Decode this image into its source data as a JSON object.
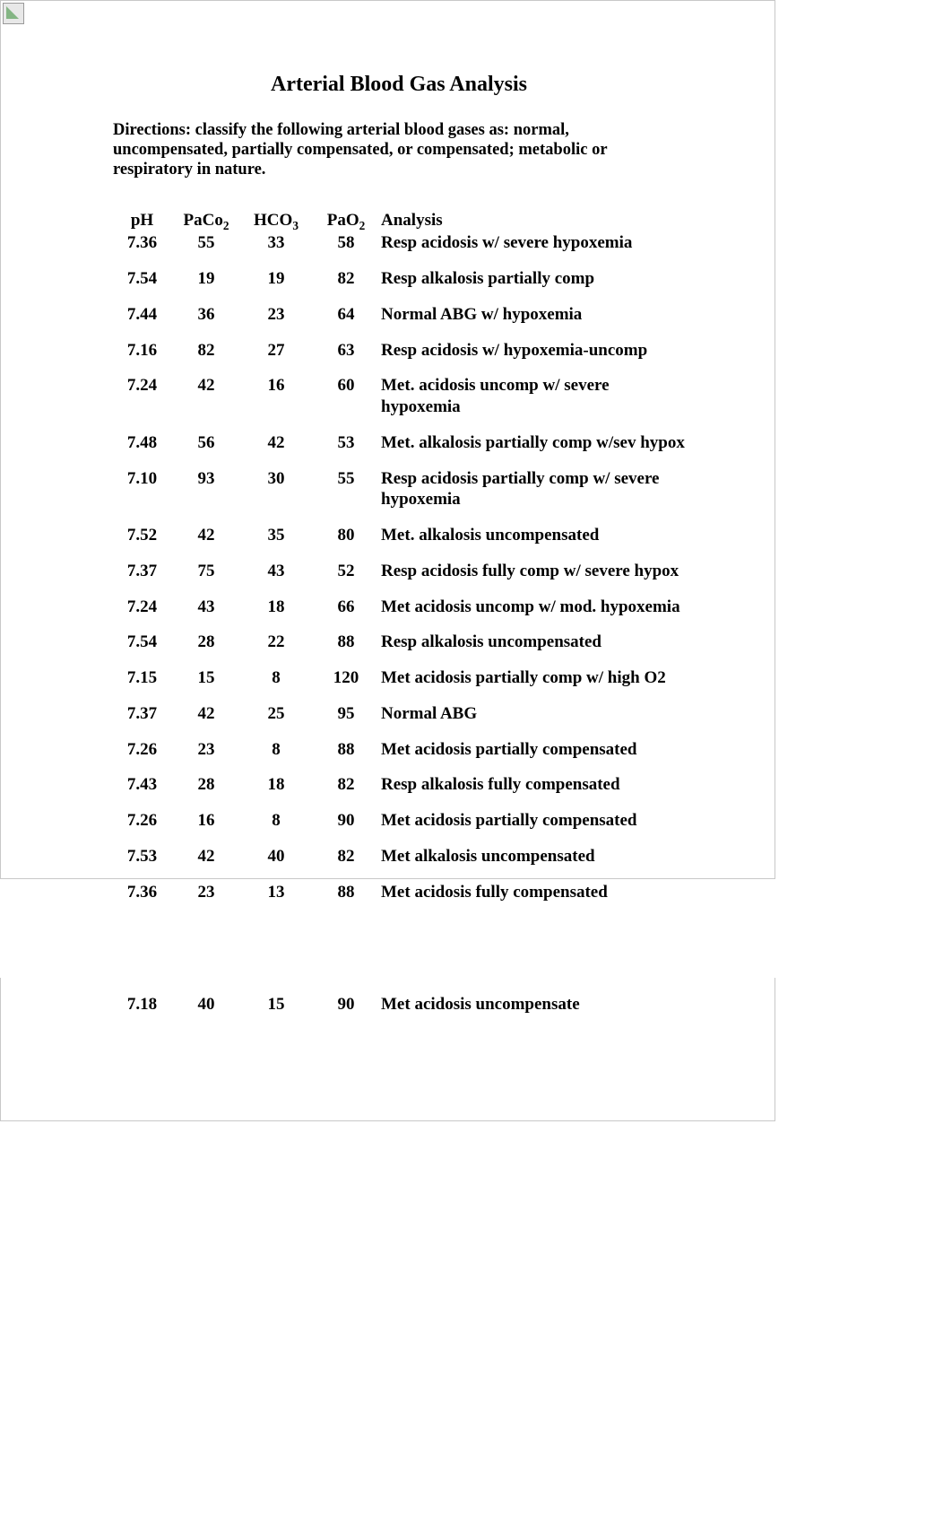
{
  "title": "Arterial Blood Gas Analysis",
  "directions": "Directions: classify the following arterial blood gases as: normal, uncompensated, partially compensated, or compensated; metabolic or respiratory in nature.",
  "columns": {
    "ph": "pH",
    "paco2_pre": "PaCo",
    "paco2_sub": "2",
    "hco3_pre": "HCO",
    "hco3_sub": "3",
    "pao2_pre": "PaO",
    "pao2_sub": "2",
    "analysis": "Analysis"
  },
  "rows_page1": [
    {
      "ph": "7.36",
      "paco2": "55",
      "hco3": "33",
      "pao2": "58",
      "analysis": "Resp acidosis w/ severe hypoxemia"
    },
    {
      "ph": "7.54",
      "paco2": "19",
      "hco3": "19",
      "pao2": "82",
      "analysis": "Resp alkalosis partially comp"
    },
    {
      "ph": "7.44",
      "paco2": "36",
      "hco3": "23",
      "pao2": "64",
      "analysis": "Normal ABG w/ hypoxemia"
    },
    {
      "ph": "7.16",
      "paco2": "82",
      "hco3": "27",
      "pao2": "63",
      "analysis": "Resp acidosis w/ hypoxemia-uncomp"
    },
    {
      "ph": "7.24",
      "paco2": "42",
      "hco3": "16",
      "pao2": "60",
      "analysis": "Met. acidosis uncomp w/ severe hypoxemia"
    },
    {
      "ph": "7.48",
      "paco2": "56",
      "hco3": "42",
      "pao2": "53",
      "analysis": "Met. alkalosis partially comp w/sev hypox"
    },
    {
      "ph": "7.10",
      "paco2": "93",
      "hco3": "30",
      "pao2": "55",
      "analysis": "Resp acidosis partially comp w/ severe hypoxemia"
    },
    {
      "ph": "7.52",
      "paco2": "42",
      "hco3": "35",
      "pao2": "80",
      "analysis": "Met. alkalosis uncompensated"
    },
    {
      "ph": "7.37",
      "paco2": "75",
      "hco3": "43",
      "pao2": "52",
      "analysis": "Resp acidosis fully comp w/ severe hypox"
    },
    {
      "ph": "7.24",
      "paco2": "43",
      "hco3": "18",
      "pao2": "66",
      "analysis": "Met acidosis uncomp w/ mod. hypoxemia"
    },
    {
      "ph": "7.54",
      "paco2": "28",
      "hco3": "22",
      "pao2": "88",
      "analysis": "Resp alkalosis uncompensated"
    },
    {
      "ph": "7.15",
      "paco2": "15",
      "hco3": "8",
      "pao2": "120",
      "analysis": "Met acidosis partially comp w/ high O2"
    },
    {
      "ph": "7.37",
      "paco2": "42",
      "hco3": "25",
      "pao2": "95",
      "analysis": "Normal ABG"
    },
    {
      "ph": "7.26",
      "paco2": "23",
      "hco3": "8",
      "pao2": "88",
      "analysis": "Met acidosis partially compensated"
    },
    {
      "ph": "7.43",
      "paco2": "28",
      "hco3": "18",
      "pao2": "82",
      "analysis": "Resp alkalosis fully compensated"
    },
    {
      "ph": "7.26",
      "paco2": "16",
      "hco3": "8",
      "pao2": "90",
      "analysis": "Met acidosis partially compensated"
    },
    {
      "ph": "7.53",
      "paco2": "42",
      "hco3": "40",
      "pao2": "82",
      "analysis": "Met alkalosis uncompensated"
    },
    {
      "ph": "7.36",
      "paco2": "23",
      "hco3": "13",
      "pao2": "88",
      "analysis": "Met acidosis fully compensated"
    }
  ],
  "rows_page2": [
    {
      "ph": "7.18",
      "paco2": "40",
      "hco3": "15",
      "pao2": "90",
      "analysis": "Met acidosis uncompensate"
    }
  ],
  "style": {
    "text_color": "#000000",
    "background": "#ffffff",
    "border_color": "#c8c8c8",
    "title_fontsize": 24,
    "body_fontsize": 19,
    "directions_fontsize": 18.5,
    "font_family": "Times New Roman"
  }
}
